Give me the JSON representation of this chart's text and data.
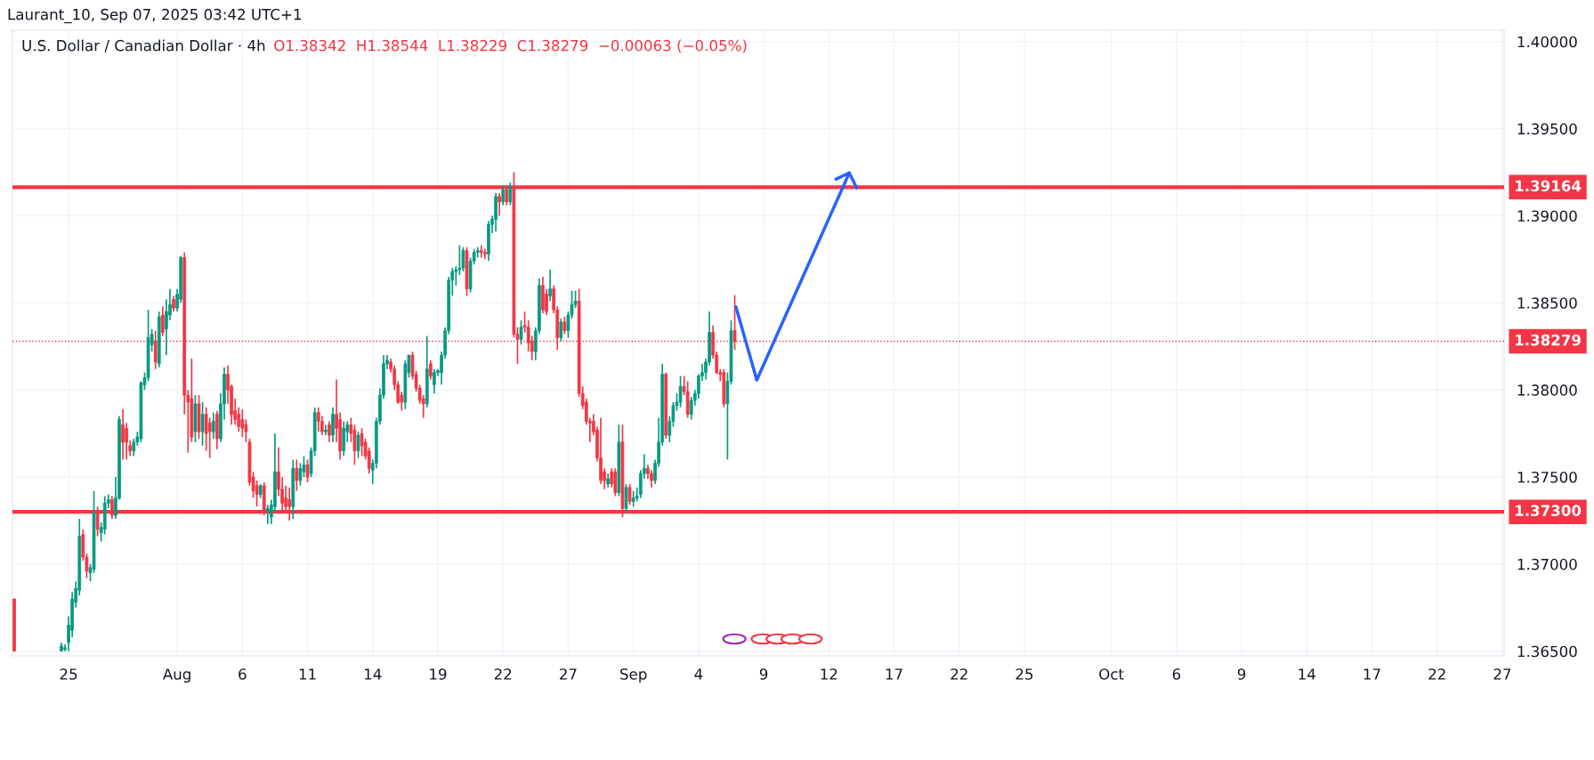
{
  "chart_data": {
    "type": "candlestick",
    "title": "U.S. Dollar / Canadian Dollar · 4h",
    "subtitle": "O1.38342  H1.38544  L1.38229  C1.38279  −0.00063 (−0.05%)",
    "annotations": [
      "Laurant_10, Sep 07, 2025 03:42 UTC+1"
    ],
    "categories": [
      null,
      null,
      null,
      null,
      null,
      null,
      null,
      null,
      null,
      null,
      null,
      null,
      null,
      null,
      null,
      "25",
      null,
      null,
      null,
      null,
      null,
      null,
      null,
      null,
      null,
      null,
      null,
      null,
      null,
      null,
      null,
      null,
      null,
      null,
      null,
      null,
      null,
      null,
      null,
      null,
      null,
      null,
      null,
      null,
      null,
      "Aug",
      null,
      null,
      null,
      null,
      null,
      null,
      null,
      null,
      null,
      null,
      null,
      null,
      null,
      null,
      null,
      null,
      null,
      "6",
      null,
      null,
      null,
      null,
      null,
      null,
      null,
      null,
      null,
      null,
      null,
      null,
      null,
      null,
      null,
      null,
      null,
      "11",
      null,
      null,
      null,
      null,
      null,
      null,
      null,
      null,
      null,
      null,
      null,
      null,
      null,
      null,
      null,
      null,
      null,
      "14",
      null,
      null,
      null,
      null,
      null,
      null,
      null,
      null,
      null,
      null,
      null,
      null,
      null,
      null,
      null,
      null,
      null,
      "19",
      null,
      null,
      null,
      null,
      null,
      null,
      null,
      null,
      null,
      null,
      null,
      null,
      null,
      null,
      null,
      null,
      null,
      "22",
      null,
      null,
      null,
      null,
      null,
      null,
      null,
      null,
      null,
      null,
      null,
      null,
      null,
      null,
      null,
      null,
      null,
      "27",
      null,
      null,
      null,
      null,
      null,
      null,
      null,
      null,
      null,
      null,
      null,
      null,
      null,
      null,
      null,
      null,
      null,
      "Sep",
      null,
      null,
      null,
      null,
      null,
      null,
      null,
      null,
      null,
      null,
      null,
      null,
      null,
      null,
      null,
      null,
      null,
      "4",
      null,
      null,
      null,
      null,
      null,
      null,
      null,
      null,
      null,
      null,
      null,
      null,
      null,
      null,
      null,
      null,
      null,
      "9",
      null,
      null,
      null,
      null,
      null,
      null,
      null,
      null,
      null,
      null,
      null,
      null,
      null,
      null,
      null,
      null,
      null,
      "12",
      null,
      null,
      null,
      null,
      null,
      null,
      null,
      null,
      null,
      null,
      null,
      null,
      null,
      null,
      null,
      null,
      null,
      "17",
      null,
      null,
      null,
      null,
      null,
      null,
      null,
      null,
      null,
      null,
      null,
      null,
      null,
      null,
      null,
      null,
      null,
      "22",
      null,
      null,
      null,
      null,
      null,
      null,
      null,
      null,
      null,
      null,
      null,
      null,
      null,
      null,
      null,
      null,
      null,
      "25",
      null,
      null,
      null,
      null,
      null,
      null,
      null,
      null,
      null,
      null,
      null,
      null,
      null,
      null,
      null,
      null,
      null,
      null,
      null,
      null,
      null,
      null,
      null,
      "Oct",
      null,
      null,
      null,
      null,
      null,
      null,
      null,
      null,
      null,
      null,
      null,
      null,
      null,
      null,
      null,
      null,
      null,
      "6",
      null,
      null,
      null,
      null,
      null,
      null,
      null,
      null,
      null,
      null,
      null,
      null,
      null,
      null,
      null,
      null,
      null,
      "9",
      null,
      null,
      null,
      null,
      null,
      null,
      null,
      null,
      null,
      null,
      null,
      null,
      null,
      null,
      null,
      null,
      null,
      "14",
      null,
      null,
      null,
      null,
      null,
      null,
      null,
      null,
      null,
      null,
      null,
      null,
      null,
      null,
      null,
      null,
      null,
      "17",
      null,
      null,
      null,
      null,
      null,
      null,
      null,
      null,
      null,
      null,
      null,
      null,
      null,
      null,
      null,
      null,
      null,
      "22",
      null,
      null,
      null,
      null,
      null,
      null,
      null,
      null,
      null,
      null,
      null,
      null,
      null,
      null,
      null,
      null,
      null,
      "27"
    ],
    "ohlc": [
      [
        1.368,
        1.368,
        1.365,
        1.365
      ],
      null,
      null,
      null,
      null,
      null,
      null,
      null,
      null,
      null,
      null,
      null,
      null,
      [
        1.365,
        1.3655,
        1.365,
        1.3653
      ],
      [
        1.3651,
        1.3654,
        1.365,
        1.3652
      ],
      [
        1.3655,
        1.367,
        1.365,
        1.3665
      ],
      [
        1.3662,
        1.3684,
        1.3658,
        1.368
      ],
      [
        1.3678,
        1.369,
        1.3675,
        1.3686
      ],
      [
        1.3685,
        1.3726,
        1.3682,
        1.3716
      ],
      [
        1.3717,
        1.372,
        1.3702,
        1.3704
      ],
      [
        1.3704,
        1.3706,
        1.3692,
        1.3696
      ],
      [
        1.3695,
        1.37,
        1.369,
        1.3698
      ],
      [
        1.3697,
        1.3742,
        1.3695,
        1.373
      ],
      [
        1.373,
        1.3733,
        1.3716,
        1.372
      ],
      [
        1.3718,
        1.3724,
        1.3713,
        1.3721
      ],
      [
        1.372,
        1.3739,
        1.3717,
        1.3735
      ],
      [
        1.3735,
        1.374,
        1.3732,
        1.3737
      ],
      [
        1.3737,
        1.3739,
        1.3726,
        1.3728
      ],
      [
        1.3728,
        1.375,
        1.3726,
        1.3738
      ],
      [
        1.3738,
        1.3785,
        1.3737,
        1.3783
      ],
      [
        1.378,
        1.3789,
        1.376,
        1.377
      ],
      [
        1.3778,
        1.3781,
        1.376,
        1.377
      ],
      [
        1.3768,
        1.3771,
        1.3762,
        1.3765
      ],
      [
        1.3765,
        1.3772,
        1.3762,
        1.377
      ],
      [
        1.377,
        1.3776,
        1.3768,
        1.3773
      ],
      [
        1.3772,
        1.3805,
        1.377,
        1.3804
      ],
      [
        1.3803,
        1.381,
        1.38,
        1.3807
      ],
      [
        1.3807,
        1.3846,
        1.3805,
        1.383
      ],
      [
        1.3826,
        1.3835,
        1.3822,
        1.3832
      ],
      [
        1.3828,
        1.3834,
        1.3812,
        1.3816
      ],
      [
        1.3815,
        1.3845,
        1.3813,
        1.3842
      ],
      [
        1.3843,
        1.3848,
        1.3831,
        1.3833
      ],
      [
        1.3835,
        1.3852,
        1.382,
        1.3845
      ],
      [
        1.3843,
        1.3858,
        1.384,
        1.3849
      ],
      [
        1.3852,
        1.3854,
        1.3845,
        1.3847
      ],
      [
        1.3847,
        1.3858,
        1.3845,
        1.3855
      ],
      [
        1.3852,
        1.3877,
        1.385,
        1.3876
      ],
      [
        1.3876,
        1.3879,
        1.3786,
        1.3797
      ],
      [
        1.3797,
        1.38,
        1.3764,
        1.3793
      ],
      [
        1.3795,
        1.3818,
        1.377,
        1.3773
      ],
      [
        1.3776,
        1.3797,
        1.377,
        1.3792
      ],
      [
        1.3792,
        1.3797,
        1.3772,
        1.3776
      ],
      [
        1.3776,
        1.3793,
        1.3768,
        1.3786
      ],
      [
        1.3786,
        1.379,
        1.3765,
        1.3775
      ],
      [
        1.3781,
        1.3784,
        1.3761,
        1.3776
      ],
      [
        1.3776,
        1.3787,
        1.3772,
        1.3782
      ],
      [
        1.3786,
        1.3788,
        1.3766,
        1.3772
      ],
      [
        1.3772,
        1.3798,
        1.377,
        1.3792
      ],
      [
        1.3792,
        1.3813,
        1.3783,
        1.3809
      ],
      [
        1.3809,
        1.3814,
        1.3792,
        1.38
      ],
      [
        1.3802,
        1.3803,
        1.378,
        1.3786
      ],
      [
        1.3788,
        1.3795,
        1.378,
        1.3783
      ],
      [
        1.3786,
        1.379,
        1.3776,
        1.3779
      ],
      [
        1.3783,
        1.3789,
        1.3773,
        1.3778
      ],
      [
        1.378,
        1.3783,
        1.377,
        1.3776
      ],
      [
        1.377,
        1.3772,
        1.3745,
        1.3747
      ],
      [
        1.375,
        1.3753,
        1.3738,
        1.3742
      ],
      [
        1.3745,
        1.3748,
        1.3733,
        1.374
      ],
      [
        1.374,
        1.3746,
        1.3738,
        1.3745
      ],
      [
        1.3745,
        1.3747,
        1.3728,
        1.373
      ],
      [
        1.373,
        1.3734,
        1.3723,
        1.3732
      ],
      [
        1.3727,
        1.3737,
        1.3723,
        1.3734
      ],
      [
        1.3733,
        1.3775,
        1.373,
        1.3753
      ],
      [
        1.3753,
        1.3767,
        1.3739,
        1.3743
      ],
      [
        1.3743,
        1.375,
        1.373,
        1.3735
      ],
      [
        1.3738,
        1.3745,
        1.373,
        1.3733
      ],
      [
        1.3737,
        1.3744,
        1.3725,
        1.3733
      ],
      [
        1.3733,
        1.376,
        1.3726,
        1.3755
      ],
      [
        1.3755,
        1.376,
        1.3742,
        1.3748
      ],
      [
        1.3748,
        1.3758,
        1.3745,
        1.3755
      ],
      [
        1.3753,
        1.3762,
        1.375,
        1.3757
      ],
      [
        1.3757,
        1.376,
        1.3747,
        1.375
      ],
      [
        1.3752,
        1.3767,
        1.375,
        1.3765
      ],
      [
        1.3765,
        1.379,
        1.3762,
        1.3787
      ],
      [
        1.3787,
        1.379,
        1.3776,
        1.3782
      ],
      [
        1.3782,
        1.3785,
        1.3774,
        1.3776
      ],
      [
        1.3776,
        1.378,
        1.3774,
        1.3777
      ],
      [
        1.378,
        1.3782,
        1.377,
        1.3774
      ],
      [
        1.3774,
        1.379,
        1.377,
        1.3786
      ],
      [
        1.3786,
        1.3806,
        1.377,
        1.3778
      ],
      [
        1.3783,
        1.3787,
        1.376,
        1.3765
      ],
      [
        1.3765,
        1.3782,
        1.3762,
        1.3778
      ],
      [
        1.3776,
        1.3782,
        1.377,
        1.378
      ],
      [
        1.378,
        1.3784,
        1.377,
        1.3775
      ],
      [
        1.3777,
        1.378,
        1.3757,
        1.3765
      ],
      [
        1.3765,
        1.3776,
        1.3761,
        1.3774
      ],
      [
        1.3775,
        1.3778,
        1.3762,
        1.3768
      ],
      [
        1.377,
        1.3772,
        1.376,
        1.3762
      ],
      [
        1.3765,
        1.3767,
        1.3752,
        1.3755
      ],
      [
        1.3754,
        1.376,
        1.3746,
        1.3758
      ],
      [
        1.3758,
        1.3784,
        1.3755,
        1.3782
      ],
      [
        1.3782,
        1.3801,
        1.378,
        1.3797
      ],
      [
        1.3797,
        1.382,
        1.3795,
        1.3815
      ],
      [
        1.3815,
        1.382,
        1.3812,
        1.3817
      ],
      [
        1.3816,
        1.3818,
        1.381,
        1.3812
      ],
      [
        1.3812,
        1.3814,
        1.38,
        1.3803
      ],
      [
        1.3803,
        1.3805,
        1.3792,
        1.3793
      ],
      [
        1.3797,
        1.3799,
        1.3788,
        1.3793
      ],
      [
        1.3793,
        1.3817,
        1.3789,
        1.3815
      ],
      [
        1.381,
        1.382,
        1.3807,
        1.382
      ],
      [
        1.382,
        1.3822,
        1.3806,
        1.3808
      ],
      [
        1.3809,
        1.3811,
        1.3799,
        1.3801
      ],
      [
        1.3801,
        1.3803,
        1.3792,
        1.3794
      ],
      [
        1.3795,
        1.3797,
        1.3784,
        1.3792
      ],
      [
        1.3792,
        1.3831,
        1.379,
        1.3812
      ],
      [
        1.3815,
        1.3817,
        1.3806,
        1.3808
      ],
      [
        1.3803,
        1.3812,
        1.3798,
        1.381
      ],
      [
        1.381,
        1.3812,
        1.3808,
        1.3811
      ],
      [
        1.381,
        1.3822,
        1.3803,
        1.382
      ],
      [
        1.382,
        1.3836,
        1.3818,
        1.3834
      ],
      [
        1.3834,
        1.3865,
        1.3832,
        1.3863
      ],
      [
        1.3863,
        1.387,
        1.3854,
        1.3868
      ],
      [
        1.3868,
        1.3871,
        1.386,
        1.3869
      ],
      [
        1.3869,
        1.3883,
        1.3866,
        1.387
      ],
      [
        1.387,
        1.3882,
        1.3868,
        1.388
      ],
      [
        1.388,
        1.3882,
        1.3854,
        1.3858
      ],
      [
        1.3858,
        1.3876,
        1.3856,
        1.3874
      ],
      [
        1.3874,
        1.3881,
        1.3872,
        1.3879
      ],
      [
        1.3879,
        1.3882,
        1.3876,
        1.388
      ],
      [
        1.388,
        1.3883,
        1.3876,
        1.3879
      ],
      [
        1.3879,
        1.3881,
        1.3875,
        1.3878
      ],
      [
        1.3878,
        1.3897,
        1.3874,
        1.3895
      ],
      [
        1.3895,
        1.39,
        1.389,
        1.3898
      ],
      [
        1.3898,
        1.3913,
        1.3891,
        1.3911
      ],
      [
        1.3911,
        1.3913,
        1.39,
        1.3908
      ],
      [
        1.3908,
        1.3917,
        1.3906,
        1.3915
      ],
      [
        1.3915,
        1.3917,
        1.3906,
        1.3908
      ],
      [
        1.3908,
        1.3919,
        1.3906,
        1.3917
      ],
      [
        1.3916,
        1.3925,
        1.383,
        1.3832
      ],
      [
        1.3832,
        1.3836,
        1.3815,
        1.3829
      ],
      [
        1.3829,
        1.384,
        1.3826,
        1.3836
      ],
      [
        1.3837,
        1.3845,
        1.3833,
        1.3836
      ],
      [
        1.3836,
        1.384,
        1.3822,
        1.3827
      ],
      [
        1.3828,
        1.3831,
        1.3817,
        1.3822
      ],
      [
        1.3822,
        1.3836,
        1.3817,
        1.3834
      ],
      [
        1.3834,
        1.3864,
        1.3832,
        1.386
      ],
      [
        1.386,
        1.3865,
        1.3844,
        1.3846
      ],
      [
        1.3855,
        1.3858,
        1.3843,
        1.3845
      ],
      [
        1.3854,
        1.3869,
        1.3851,
        1.3858
      ],
      [
        1.3858,
        1.386,
        1.3844,
        1.3846
      ],
      [
        1.3846,
        1.3848,
        1.3823,
        1.383
      ],
      [
        1.383,
        1.3841,
        1.3828,
        1.3839
      ],
      [
        1.3839,
        1.3842,
        1.3832,
        1.3834
      ],
      [
        1.3834,
        1.3845,
        1.383,
        1.3843
      ],
      [
        1.3843,
        1.3857,
        1.3841,
        1.3849
      ],
      [
        1.3849,
        1.3857,
        1.3847,
        1.3851
      ],
      [
        1.3851,
        1.3858,
        1.3796,
        1.3798
      ],
      [
        1.3798,
        1.3802,
        1.3789,
        1.3791
      ],
      [
        1.3793,
        1.3795,
        1.378,
        1.3782
      ],
      [
        1.3782,
        1.3784,
        1.377,
        1.3781
      ],
      [
        1.3782,
        1.3786,
        1.3774,
        1.3776
      ],
      [
        1.3777,
        1.3779,
        1.3759,
        1.3761
      ],
      [
        1.3761,
        1.3784,
        1.3746,
        1.3748
      ],
      [
        1.3753,
        1.3755,
        1.3743,
        1.3748
      ],
      [
        1.3746,
        1.3752,
        1.3744,
        1.3749
      ],
      [
        1.3753,
        1.3755,
        1.3744,
        1.3746
      ],
      [
        1.3753,
        1.3755,
        1.3739,
        1.3741
      ],
      [
        1.3741,
        1.378,
        1.3739,
        1.377
      ],
      [
        1.377,
        1.378,
        1.3727,
        1.3732
      ],
      [
        1.3732,
        1.3746,
        1.3729,
        1.3744
      ],
      [
        1.3744,
        1.3746,
        1.3734,
        1.3736
      ],
      [
        1.3736,
        1.3742,
        1.3733,
        1.3738
      ],
      [
        1.3738,
        1.3744,
        1.3736,
        1.3739
      ],
      [
        1.374,
        1.3754,
        1.3738,
        1.3752
      ],
      [
        1.3752,
        1.3763,
        1.3749,
        1.3755
      ],
      [
        1.3755,
        1.3757,
        1.3749,
        1.3752
      ],
      [
        1.3752,
        1.3754,
        1.3744,
        1.3748
      ],
      [
        1.3748,
        1.376,
        1.3746,
        1.3758
      ],
      [
        1.3758,
        1.3784,
        1.3756,
        1.377
      ],
      [
        1.377,
        1.3815,
        1.3768,
        1.3809
      ],
      [
        1.3809,
        1.381,
        1.3772,
        1.3774
      ],
      [
        1.3774,
        1.3785,
        1.377,
        1.3782
      ],
      [
        1.3782,
        1.3793,
        1.3779,
        1.3791
      ],
      [
        1.3791,
        1.3798,
        1.3788,
        1.3793
      ],
      [
        1.3793,
        1.3808,
        1.379,
        1.3802
      ],
      [
        1.3802,
        1.3808,
        1.3797,
        1.3799
      ],
      [
        1.3799,
        1.3805,
        1.3784,
        1.3786
      ],
      [
        1.3786,
        1.3796,
        1.3783,
        1.3794
      ],
      [
        1.3794,
        1.38,
        1.3791,
        1.3798
      ],
      [
        1.3798,
        1.3809,
        1.3795,
        1.3808
      ],
      [
        1.3808,
        1.3815,
        1.3805,
        1.381
      ],
      [
        1.381,
        1.3818,
        1.3806,
        1.3816
      ],
      [
        1.3816,
        1.3845,
        1.3814,
        1.3833
      ],
      [
        1.3833,
        1.3837,
        1.3818,
        1.382
      ],
      [
        1.382,
        1.3822,
        1.3809,
        1.381
      ],
      [
        1.381,
        1.3812,
        1.3805,
        1.3809
      ],
      [
        1.381,
        1.3812,
        1.379,
        1.3792
      ],
      [
        1.3792,
        1.381,
        1.376,
        1.3805
      ],
      [
        1.3805,
        1.384,
        1.3803,
        1.3834
      ],
      [
        1.38342,
        1.38544,
        1.38229,
        1.38279
      ],
      null,
      null,
      null,
      null,
      null,
      null,
      null,
      null,
      null,
      null,
      null,
      null,
      null,
      null,
      null,
      null,
      null,
      null,
      null,
      null,
      null,
      null,
      null,
      null,
      null,
      null,
      null,
      null,
      null,
      null,
      null,
      null,
      null,
      null,
      null,
      null,
      null,
      null,
      null,
      null,
      null,
      null,
      null,
      null,
      null,
      null,
      null,
      null,
      null,
      null,
      null,
      null,
      null,
      null,
      null,
      null,
      null,
      null,
      null,
      null,
      null,
      null,
      null,
      null,
      null,
      null,
      null,
      null,
      null,
      null,
      null,
      null,
      null,
      null,
      null,
      null,
      null,
      null,
      null,
      null,
      null,
      null,
      null,
      null,
      null,
      null,
      null,
      null,
      null,
      null,
      null,
      null,
      null,
      null,
      null,
      null,
      null,
      null,
      null,
      null,
      null,
      null,
      null,
      null,
      null,
      null,
      null,
      null,
      null,
      null,
      null,
      null,
      null,
      null,
      null,
      null,
      null,
      null,
      null,
      null,
      null,
      null,
      null,
      null,
      null,
      null,
      null,
      null,
      null,
      null,
      null,
      null,
      null,
      null,
      null,
      null,
      null,
      null,
      null,
      null,
      null,
      null,
      null,
      null,
      null,
      null,
      null,
      null,
      null,
      null,
      null,
      null,
      null,
      null,
      null,
      null,
      null,
      null,
      null,
      null,
      null,
      null,
      null,
      null,
      null,
      null,
      null,
      null,
      null,
      null,
      null,
      null,
      null,
      null,
      null,
      null,
      null,
      null,
      null,
      null,
      null,
      null,
      null,
      null,
      null,
      null,
      null,
      null,
      null,
      null,
      null,
      null,
      null,
      null,
      null,
      null,
      null,
      null,
      null,
      null,
      null,
      null,
      null,
      null,
      null,
      null,
      null,
      null,
      null,
      null,
      null,
      null
    ],
    "colors": [
      "#f23645",
      null,
      null,
      null,
      null,
      null,
      null,
      null,
      null,
      null,
      null,
      null,
      null,
      "#089981",
      "#089981",
      "#089981",
      "#089981",
      "#089981",
      "#089981",
      "#f23645",
      "#f23645",
      "#089981",
      "#089981",
      "#f23645",
      "#089981",
      "#089981",
      "#089981",
      "#f23645",
      "#089981",
      "#089981",
      "#f23645",
      "#f23645",
      "#f23645",
      "#089981",
      "#089981",
      "#089981",
      "#089981",
      "#089981",
      "#089981",
      "#f23645",
      "#089981",
      "#f23645",
      "#089981",
      "#089981",
      "#f23645",
      "#089981",
      "#089981",
      "#f23645",
      "#f23645",
      "#f23645",
      "#089981",
      "#f23645",
      "#089981",
      "#f23645",
      "#f23645",
      "#089981",
      "#f23645",
      "#089981",
      "#089981",
      "#f23645",
      "#f23645",
      "#f23645",
      "#f23645",
      "#f23645",
      "#f23645",
      "#f23645",
      "#f23645",
      "#f23645",
      "#089981",
      "#f23645",
      "#089981",
      "#089981",
      "#089981",
      "#f23645",
      "#f23645",
      "#f23645",
      "#f23645",
      "#089981",
      "#f23645",
      "#089981",
      "#089981",
      "#f23645",
      "#089981",
      "#089981",
      "#f23645",
      "#f23645",
      "#089981",
      "#f23645",
      "#089981",
      "#f23645",
      "#f23645",
      "#089981",
      "#089981",
      "#f23645",
      "#f23645",
      "#089981",
      "#f23645",
      "#f23645",
      "#f23645",
      "#089981",
      "#089981",
      "#089981",
      "#089981",
      "#089981",
      "#f23645",
      "#f23645",
      "#f23645",
      "#f23645",
      "#089981",
      "#089981",
      "#f23645",
      "#f23645",
      "#f23645",
      "#f23645",
      "#089981",
      "#f23645",
      "#089981",
      "#089981",
      "#089981",
      "#089981",
      "#089981",
      "#089981",
      "#089981",
      "#089981",
      "#089981",
      "#f23645",
      "#089981",
      "#089981",
      "#089981",
      "#f23645",
      "#f23645",
      "#089981",
      "#089981",
      "#089981",
      "#f23645",
      "#089981",
      "#f23645",
      "#089981",
      "#f23645",
      "#f23645",
      "#089981",
      "#f23645",
      "#f23645",
      "#f23645",
      "#089981",
      "#089981",
      "#f23645",
      "#f23645",
      "#089981",
      "#f23645",
      "#f23645",
      "#089981",
      "#f23645",
      "#089981",
      "#089981",
      "#089981",
      "#f23645",
      "#f23645",
      "#f23645",
      "#f23645",
      "#f23645",
      "#f23645",
      "#f23645",
      "#f23645",
      "#089981",
      "#f23645",
      "#f23645",
      "#089981",
      "#f23645",
      "#089981",
      "#f23645",
      "#089981",
      "#089981",
      "#089981",
      "#089981",
      "#f23645",
      "#f23645",
      "#089981",
      "#089981",
      "#089981",
      "#f23645",
      "#089981",
      "#089981",
      "#089981",
      "#089981",
      "#f23645",
      "#f23645",
      "#089981",
      "#089981",
      "#089981",
      "#089981",
      "#089981",
      "#089981",
      "#f23645",
      "#f23645",
      "#f23645",
      "#f23645",
      "#089981",
      "#089981",
      "#f23645",
      null,
      null,
      null,
      null,
      null,
      null,
      null,
      null,
      null,
      null,
      null,
      null,
      null,
      null,
      null,
      null,
      null,
      null,
      null,
      null,
      null,
      null,
      null,
      null,
      null,
      null,
      null,
      null,
      null,
      null,
      null,
      null,
      null,
      null,
      null,
      null,
      null,
      null,
      null,
      null,
      null,
      null,
      null,
      null,
      null,
      null,
      null,
      null,
      null,
      null,
      null,
      null,
      null,
      null,
      null,
      null,
      null,
      null,
      null,
      null,
      null,
      null,
      null,
      null,
      null,
      null,
      null,
      null,
      null,
      null,
      null,
      null,
      null,
      null,
      null,
      null,
      null,
      null,
      null,
      null,
      null,
      null,
      null,
      null,
      null,
      null,
      null,
      null,
      null,
      null,
      null,
      null,
      null,
      null,
      null,
      null,
      null,
      null,
      null,
      null,
      null,
      null,
      null,
      null,
      null,
      null,
      null,
      null,
      null,
      null,
      null,
      null,
      null,
      null,
      null,
      null,
      null,
      null,
      null,
      null,
      null,
      null,
      null,
      null,
      null,
      null,
      null,
      null,
      null,
      null,
      null,
      null,
      null,
      null,
      null,
      null,
      null,
      null,
      null,
      null,
      null,
      null,
      null,
      null,
      null,
      null,
      null,
      null,
      null,
      null,
      null,
      null,
      null,
      null,
      null,
      null,
      null,
      null,
      null,
      null,
      null,
      null,
      null,
      null,
      null,
      null,
      null,
      null,
      null,
      null,
      null,
      null,
      null,
      null,
      null,
      null,
      null,
      null,
      null,
      null,
      null,
      null,
      null,
      null,
      null,
      null,
      null,
      null,
      null,
      null,
      null,
      null,
      null,
      null,
      null,
      null,
      null,
      null,
      null,
      null,
      null,
      null,
      null,
      null,
      null,
      null,
      null,
      null,
      null,
      null,
      null,
      null
    ],
    "ylim": [
      1.36473,
      1.40065
    ],
    "yticks": [
      {
        "value": 1.365,
        "label": "1.36500"
      },
      {
        "value": 1.37,
        "label": "1.37000"
      },
      {
        "value": 1.375,
        "label": "1.37500"
      },
      {
        "value": 1.38,
        "label": "1.38000"
      },
      {
        "value": 1.385,
        "label": "1.38500"
      },
      {
        "value": 1.39,
        "label": "1.39000"
      },
      {
        "value": 1.395,
        "label": "1.39500"
      },
      {
        "value": 1.4,
        "label": "1.40000"
      }
    ],
    "ref_lines": [
      {
        "axis": "y",
        "value": 1.39164,
        "label": "1.39164",
        "color": "#f23645",
        "line_style": "solid"
      },
      {
        "axis": "y",
        "value": 1.373,
        "label": "1.37300",
        "color": "#f23645",
        "line_style": "solid"
      },
      {
        "axis": "y",
        "value": 1.38279,
        "label": "1.38279",
        "color": "#f23645",
        "line_style": "dotted"
      }
    ],
    "grid": true
  }
}
